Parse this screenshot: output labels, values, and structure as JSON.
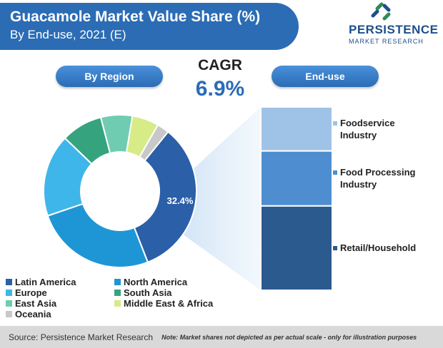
{
  "header": {
    "title": "Guacamole Market Value Share (%)",
    "subtitle": "By End-use, 2021 (E)"
  },
  "logo": {
    "name": "PERSISTENCE",
    "tagline": "MARKET RESEARCH"
  },
  "cagr": {
    "label": "CAGR",
    "value": "6.9%"
  },
  "panels": {
    "region_label": "By Region",
    "enduse_label": "End-use"
  },
  "chart_data": [
    {
      "type": "pie",
      "variant": "donut",
      "title": "By Region",
      "categories": [
        "Latin America",
        "North America",
        "Europe",
        "South Asia",
        "East Asia",
        "Middle East & Africa",
        "Oceania"
      ],
      "values": [
        32.4,
        25.0,
        17.0,
        8.5,
        6.5,
        5.5,
        2.5
      ],
      "colors": [
        "#2b5fa8",
        "#1e96d6",
        "#3fb6ea",
        "#35a47e",
        "#6fccb0",
        "#d7eb87",
        "#c8c8c8"
      ],
      "data_labels": [
        "32.4%",
        "",
        "",
        "",
        "",
        "",
        ""
      ],
      "legend_position": "bottom"
    },
    {
      "type": "bar",
      "variant": "stacked-100",
      "title": "End-use",
      "categories": [
        "Foodservice Industry",
        "Food Processing Industry",
        "Retail/Household"
      ],
      "values": [
        24,
        30,
        46
      ],
      "colors": [
        "#9fc3e7",
        "#4e8ed0",
        "#2b5a8e"
      ],
      "legend_position": "right"
    }
  ],
  "footer": {
    "source": "Source: Persistence Market Research",
    "note": "Note: Market shares not depicted as per actual scale - only for illustration purposes"
  }
}
